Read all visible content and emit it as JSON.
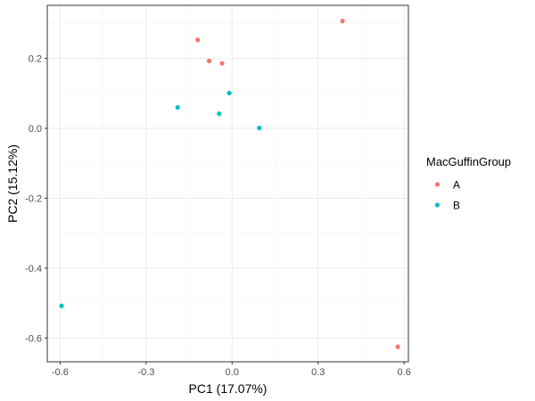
{
  "chart_data": {
    "type": "scatter",
    "xlabel": "PC1 (17.07%)",
    "ylabel": "PC2 (15.12%)",
    "xlim": [
      -0.645,
      0.615
    ],
    "ylim": [
      -0.668,
      0.352
    ],
    "x_ticks": [
      -0.6,
      -0.3,
      0.0,
      0.3,
      0.6
    ],
    "x_tick_labels": [
      "-0.6",
      "-0.3",
      "0.0",
      "0.3",
      "0.6"
    ],
    "y_ticks": [
      -0.6,
      -0.4,
      -0.2,
      0.0,
      0.2
    ],
    "y_tick_labels": [
      "-0.6",
      "-0.4",
      "-0.2",
      "0.0",
      "0.2"
    ],
    "grid": true,
    "legend": {
      "title": "MacGuffinGroup",
      "placement": "right"
    },
    "series": [
      {
        "name": "A",
        "color": "#F8766D",
        "points": [
          {
            "x": -0.12,
            "y": 0.253
          },
          {
            "x": -0.08,
            "y": 0.193
          },
          {
            "x": -0.035,
            "y": 0.186
          },
          {
            "x": 0.385,
            "y": 0.307
          },
          {
            "x": 0.578,
            "y": -0.625
          }
        ]
      },
      {
        "name": "B",
        "color": "#00BFC4",
        "points": [
          {
            "x": -0.01,
            "y": 0.101
          },
          {
            "x": -0.19,
            "y": 0.06
          },
          {
            "x": -0.045,
            "y": 0.042
          },
          {
            "x": 0.095,
            "y": 0.001
          },
          {
            "x": -0.595,
            "y": -0.508
          }
        ]
      }
    ]
  }
}
